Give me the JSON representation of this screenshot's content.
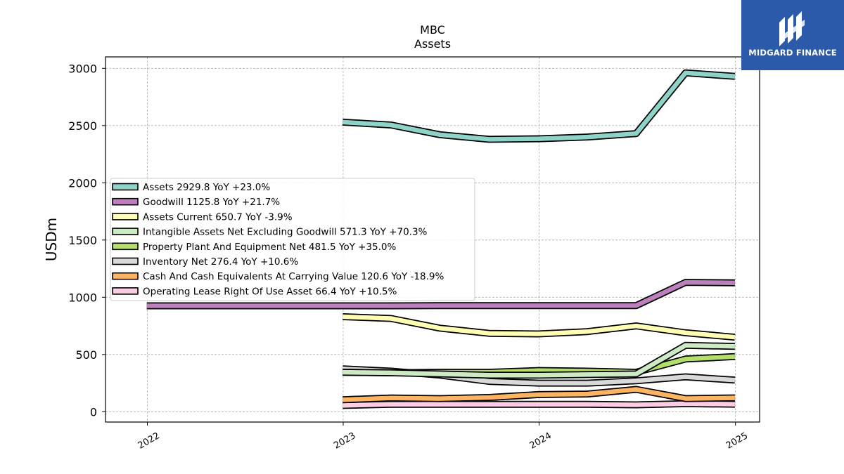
{
  "chart_data": {
    "type": "line",
    "title": "MBC",
    "subtitle": "Assets",
    "xlabel": "",
    "ylabel": "USDm",
    "xlim": [
      "2021-10-15",
      "2025-02-15"
    ],
    "ylim": [
      -90,
      3100
    ],
    "yticks": [
      0,
      500,
      1000,
      1500,
      2000,
      2500,
      3000
    ],
    "xticks": [
      "2022",
      "2023",
      "2024",
      "2025"
    ],
    "grid": true,
    "legend_position": "center-left",
    "x": [
      "2021-12-31",
      "2022-12-31",
      "2023-03-31",
      "2023-06-30",
      "2023-09-30",
      "2023-12-31",
      "2024-03-31",
      "2024-06-30",
      "2024-09-30",
      "2024-12-31"
    ],
    "series": [
      {
        "name": "Assets",
        "legend": "Assets  2929.8 YoY +23.0%",
        "color": "#8dd3c7",
        "values": [
          null,
          2530,
          2505,
          2420,
          2380,
          2385,
          2400,
          2430,
          2960,
          2930
        ]
      },
      {
        "name": "Goodwill",
        "legend": "Goodwill  1125.8 YoY +21.7%",
        "color": "#bc80bd",
        "values": [
          925,
          925,
          925,
          927,
          927,
          927,
          927,
          927,
          1130,
          1126
        ]
      },
      {
        "name": "Assets Current",
        "legend": "Assets Current  650.7 YoY -3.9%",
        "color": "#ffffb3",
        "values": [
          null,
          830,
          815,
          730,
          685,
          680,
          700,
          750,
          690,
          651
        ]
      },
      {
        "name": "Intangible Assets Net Excluding Goodwill",
        "legend": "Intangible Assets Net Excluding Goodwill  571.3 YoY +70.3%",
        "color": "#ccebc5",
        "values": [
          null,
          345,
          340,
          330,
          320,
          320,
          325,
          330,
          580,
          571
        ]
      },
      {
        "name": "Property Plant And Equipment Net",
        "legend": "Property Plant And Equipment Net  481.5 YoY +35.0%",
        "color": "#b3de69",
        "values": [
          null,
          345,
          340,
          345,
          345,
          360,
          355,
          345,
          460,
          482
        ]
      },
      {
        "name": "Inventory Net",
        "legend": "Inventory Net  276.4 YoY +10.6%",
        "color": "#d9d9d9",
        "values": [
          null,
          375,
          355,
          320,
          265,
          250,
          250,
          270,
          305,
          276
        ]
      },
      {
        "name": "Cash And Cash Equivalents At Carrying Value",
        "legend": "Cash And Cash Equivalents At Carrying Value  120.6 YoY -18.9%",
        "color": "#fdb462",
        "values": [
          null,
          105,
          120,
          115,
          125,
          150,
          155,
          195,
          115,
          121
        ]
      },
      {
        "name": "Operating Lease Right Of Use Asset",
        "legend": "Operating Lease Right Of Use Asset  66.4 YoY +10.5%",
        "color": "#fccde5",
        "values": [
          null,
          55,
          65,
          65,
          65,
          65,
          65,
          60,
          70,
          66
        ]
      }
    ]
  },
  "logo": {
    "text": "MIDGARD FINANCE",
    "color": "#2b5aaa",
    "icon": "midgard-logo-icon"
  }
}
